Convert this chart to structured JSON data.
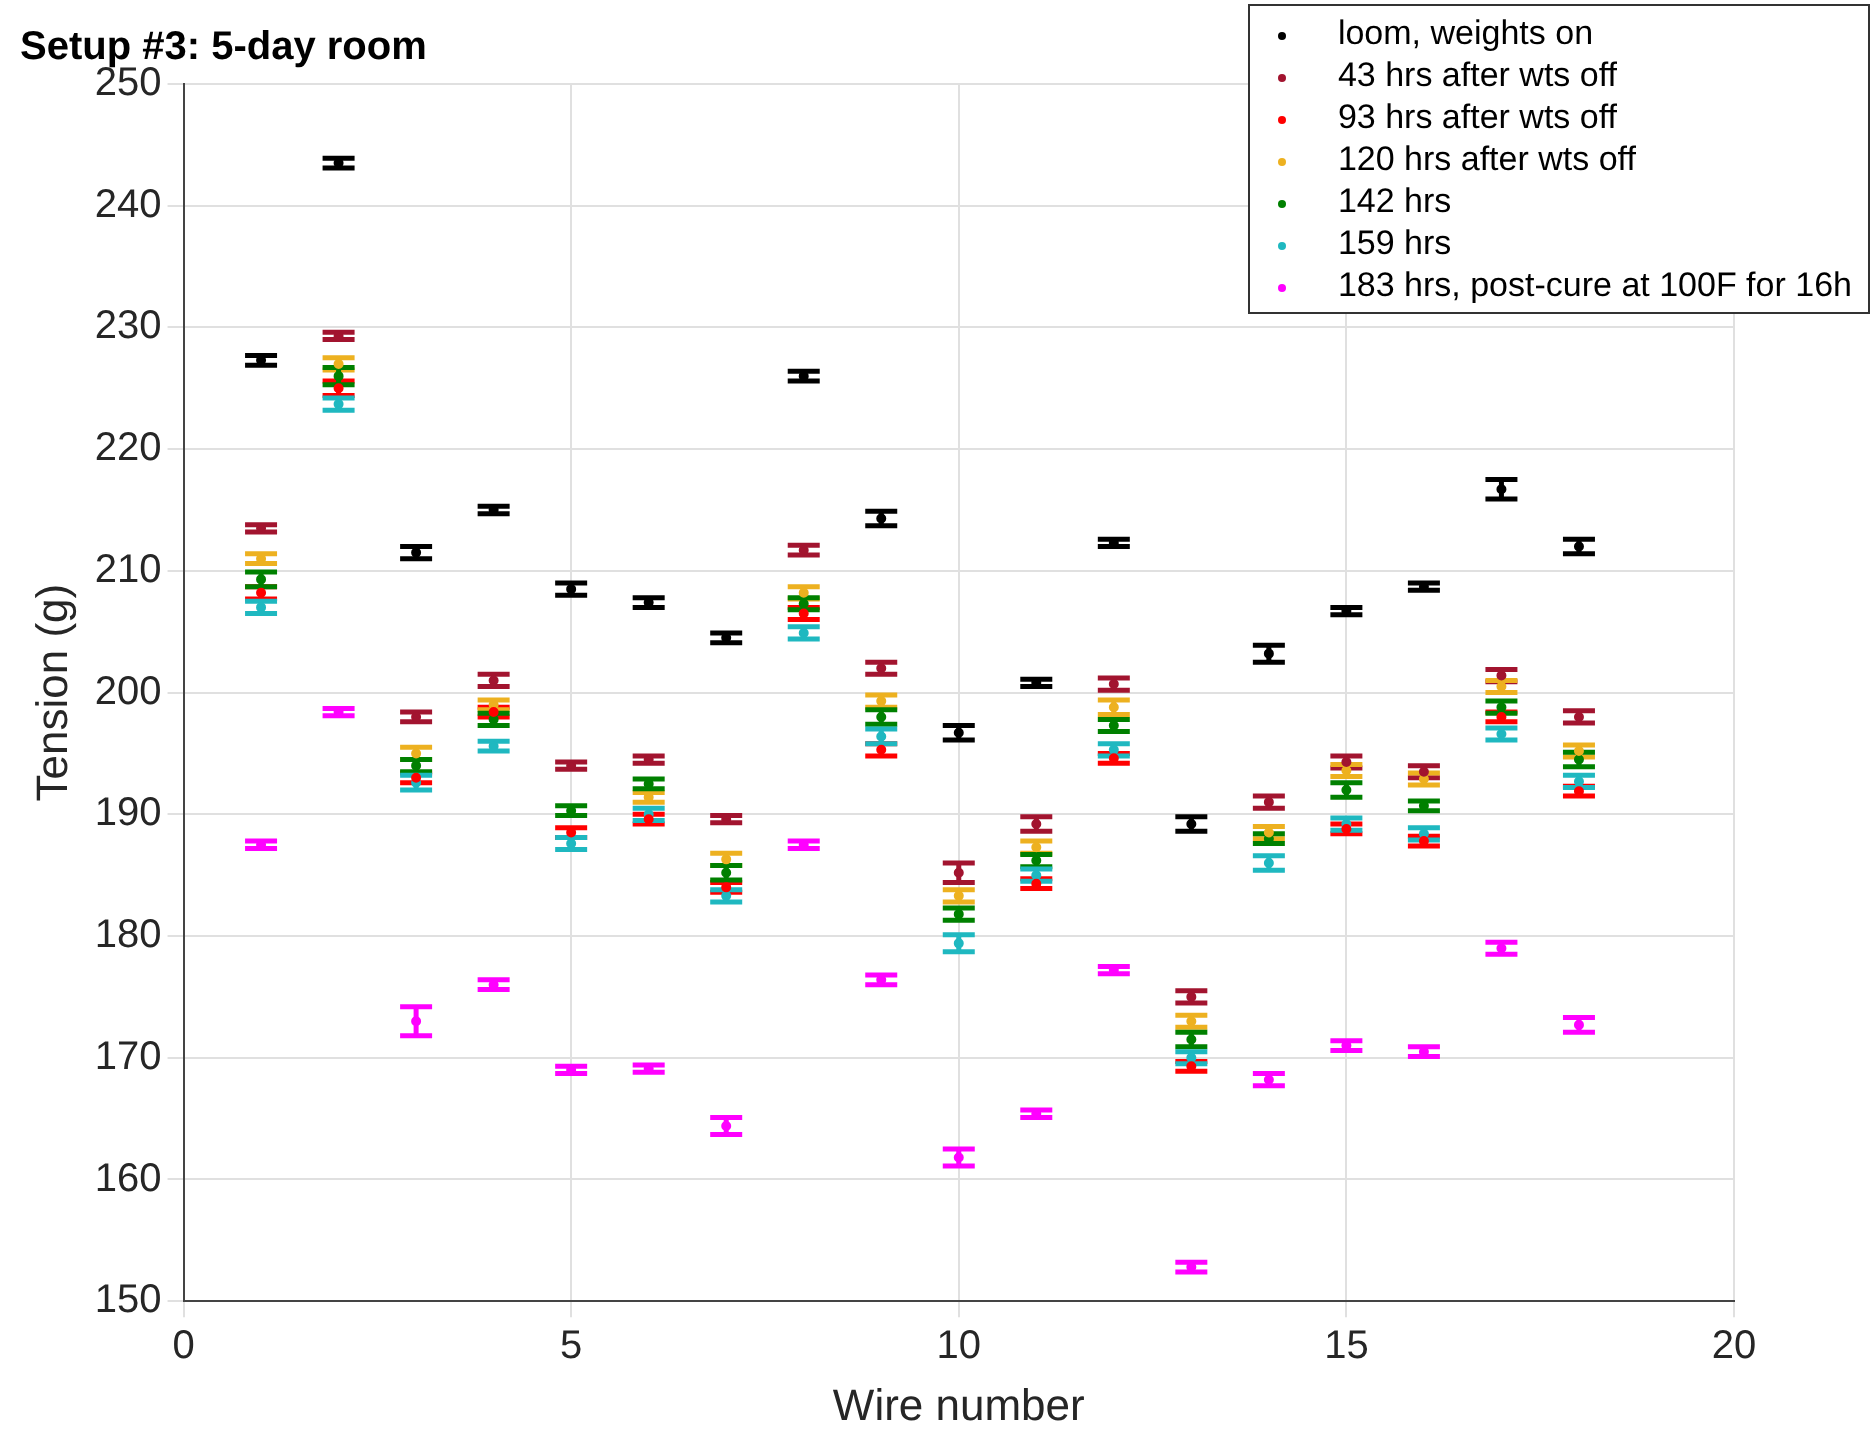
{
  "chart_data": {
    "type": "scatter",
    "title": "Setup #3: 5-day room",
    "xlabel": "Wire number",
    "ylabel": "Tension (g)",
    "x": [
      1,
      2,
      3,
      4,
      5,
      6,
      7,
      8,
      9,
      10,
      11,
      12,
      13,
      14,
      15,
      16,
      17,
      18
    ],
    "xlim": [
      0,
      20
    ],
    "xticks": [
      0,
      5,
      10,
      15,
      20
    ],
    "ylim": [
      150,
      250
    ],
    "yticks": [
      150,
      160,
      170,
      180,
      190,
      200,
      210,
      220,
      230,
      240,
      250
    ],
    "grid": true,
    "legend": "top right",
    "marker": "circle",
    "series": [
      {
        "name": "loom, weights on",
        "color": "#000000",
        "values": [
          227.3,
          243.5,
          211.5,
          215,
          208.5,
          207.4,
          204.5,
          226,
          214.3,
          196.7,
          200.8,
          212.3,
          189.2,
          203.2,
          206.7,
          208.7,
          216.7,
          212
        ],
        "errors": [
          0.4,
          0.4,
          0.5,
          0.3,
          0.5,
          0.4,
          0.4,
          0.4,
          0.6,
          0.6,
          0.3,
          0.3,
          0.6,
          0.7,
          0.3,
          0.3,
          0.8,
          0.6
        ]
      },
      {
        "name": "43 hrs after wts off",
        "color": "#a2142f",
        "values": [
          213.5,
          229.3,
          198,
          201,
          194,
          194.5,
          189.6,
          211.7,
          202,
          185.2,
          189.2,
          200.7,
          175,
          191,
          194.3,
          193.5,
          201.4,
          198
        ],
        "errors": [
          0.3,
          0.3,
          0.4,
          0.5,
          0.3,
          0.3,
          0.3,
          0.4,
          0.5,
          0.8,
          0.6,
          0.5,
          0.5,
          0.5,
          0.5,
          0.5,
          0.5,
          0.5
        ]
      },
      {
        "name": "93 hrs after wts off",
        "color": "#ff0000",
        "values": [
          208.2,
          225,
          193,
          198.4,
          188.5,
          189.6,
          184,
          206.5,
          195.3,
          null,
          184.3,
          194.6,
          169.3,
          null,
          188.8,
          187.8,
          198,
          191.9
        ],
        "errors": [
          0.5,
          0.6,
          0.4,
          0.4,
          0.4,
          0.4,
          0.4,
          0.5,
          0.5,
          null,
          0.4,
          0.4,
          0.4,
          null,
          0.4,
          0.4,
          0.4,
          0.4
        ]
      },
      {
        "name": "120 hrs after wts off",
        "color": "#edb120",
        "values": [
          211,
          227,
          195,
          199,
          null,
          191.4,
          186.3,
          208.2,
          199.3,
          183.3,
          187.3,
          198.8,
          173,
          188.5,
          193.6,
          192.9,
          200.5,
          195.2
        ],
        "errors": [
          0.4,
          0.5,
          0.5,
          0.4,
          null,
          0.4,
          0.5,
          0.5,
          0.5,
          0.5,
          0.5,
          0.6,
          0.5,
          0.5,
          0.5,
          0.5,
          0.5,
          0.5
        ]
      },
      {
        "name": "142 hrs",
        "color": "#008000",
        "values": [
          209.3,
          226,
          194,
          197.8,
          190.3,
          192.5,
          185.2,
          207.3,
          198,
          181.8,
          186.2,
          197.3,
          171.5,
          188,
          192,
          190.7,
          198.8,
          194.5
        ],
        "errors": [
          0.6,
          0.7,
          0.5,
          0.5,
          0.4,
          0.4,
          0.6,
          0.5,
          0.6,
          0.5,
          0.5,
          0.5,
          0.6,
          0.4,
          0.6,
          0.4,
          0.5,
          0.6
        ]
      },
      {
        "name": "159 hrs",
        "color": "#1fb8c0",
        "values": [
          207,
          223.7,
          192.6,
          195.6,
          187.6,
          190,
          183.3,
          204.9,
          196.4,
          179.4,
          185,
          195.3,
          170,
          186,
          189.2,
          188.4,
          196.6,
          192.7
        ],
        "errors": [
          0.5,
          0.5,
          0.6,
          0.4,
          0.5,
          0.5,
          0.5,
          0.5,
          0.6,
          0.7,
          0.5,
          0.5,
          0.5,
          0.6,
          0.5,
          0.5,
          0.5,
          0.5
        ]
      },
      {
        "name": "183 hrs, post-cure at 100F for 16h",
        "color": "#ff00ff",
        "values": [
          187.5,
          198.4,
          173,
          176,
          169,
          169.1,
          164.4,
          187.5,
          176.4,
          161.8,
          165.4,
          177.2,
          152.8,
          168.2,
          171,
          170.5,
          179,
          172.7
        ],
        "errors": [
          0.3,
          0.3,
          1.2,
          0.4,
          0.3,
          0.3,
          0.7,
          0.3,
          0.4,
          0.7,
          0.3,
          0.3,
          0.4,
          0.5,
          0.4,
          0.4,
          0.5,
          0.6
        ]
      }
    ]
  }
}
